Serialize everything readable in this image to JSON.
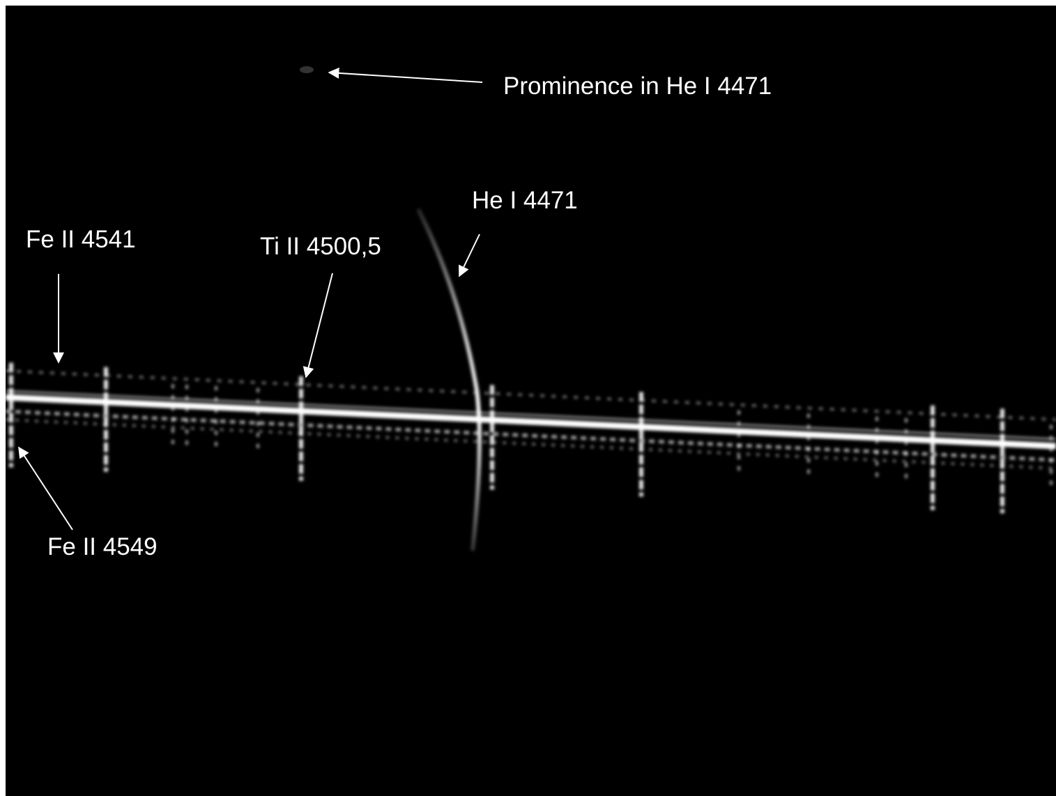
{
  "annotations": {
    "prominence": "Prominence in He I 4471",
    "he_line": "He I 4471",
    "fe_4541": "Fe II 4541",
    "ti_4500": "Ti II 4500,5",
    "fe_4549": "Fe II 4549"
  }
}
